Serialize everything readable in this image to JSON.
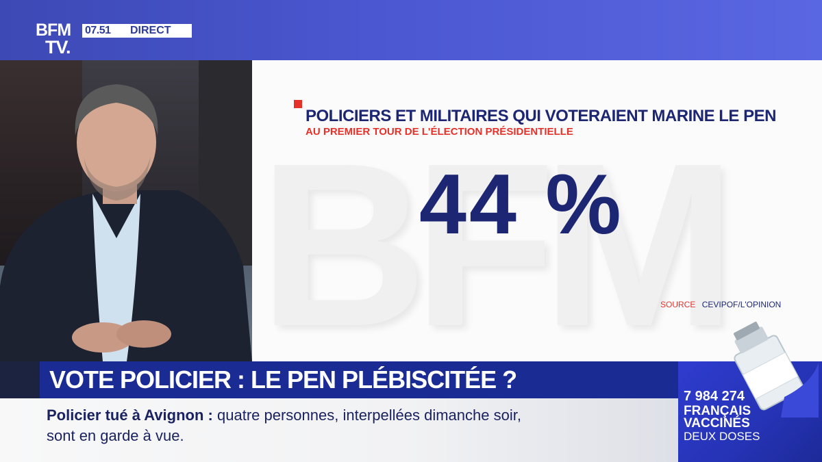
{
  "channel": {
    "logo_line1": "BFM",
    "logo_line2": "TV.",
    "time": "07.51",
    "live_label": "DIRECT"
  },
  "graphic": {
    "watermark": "BFM",
    "title": "POLICIERS ET MILITAIRES QUI VOTERAIENT MARINE LE PEN",
    "subtitle": "AU PREMIER TOUR DE L'ÉLECTION PRÉSIDENTIELLE",
    "value": "44 %",
    "source_label": "SOURCE",
    "source_value": "CEVIPOF/L'OPINION"
  },
  "headline": {
    "text": "VOTE POLICIER : LE PEN PLÉBISCITÉE ?"
  },
  "ticker": {
    "topic": "Policier tué à Avignon",
    "separator": ":",
    "line1_rest": "quatre personnes, interpellées dimanche soir,",
    "line2": "sont en garde à vue."
  },
  "vaccination": {
    "count": "7 984 274",
    "line1": "FRANÇAIS",
    "line2": "VACCINÉS",
    "line3": "DEUX DOSES"
  },
  "colors": {
    "navy": "#1c2673",
    "red": "#e4322a",
    "banner_blue": "#4a57d0",
    "headline_blue": "#1b2b94"
  }
}
